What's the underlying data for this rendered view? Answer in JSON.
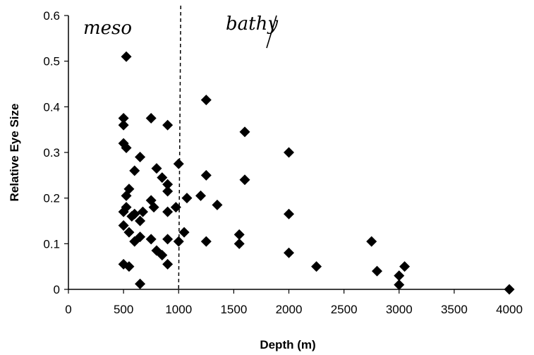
{
  "chart_data": {
    "type": "scatter",
    "xlabel": "Depth (m)",
    "ylabel": "Relative Eye Size",
    "xlim": [
      0,
      4000
    ],
    "ylim": [
      0,
      0.6
    ],
    "x_ticks": [
      "0",
      "500",
      "1000",
      "1500",
      "2000",
      "2500",
      "3000",
      "3500",
      "4000"
    ],
    "y_ticks": [
      "0",
      "0.1",
      "0.2",
      "0.3",
      "0.4",
      "0.5",
      "0.6"
    ],
    "grid": false,
    "marker_color": "#000000",
    "annotations": [
      {
        "text": "meso",
        "handwritten": true
      },
      {
        "text": "bathy",
        "handwritten": true
      }
    ],
    "divider": {
      "x": 1000,
      "style": "dashed"
    },
    "series": [
      {
        "points": [
          [
            525,
            0.51
          ],
          [
            1250,
            0.415
          ],
          [
            500,
            0.375
          ],
          [
            750,
            0.375
          ],
          [
            500,
            0.36
          ],
          [
            900,
            0.36
          ],
          [
            1600,
            0.345
          ],
          [
            500,
            0.32
          ],
          [
            525,
            0.31
          ],
          [
            2000,
            0.3
          ],
          [
            650,
            0.29
          ],
          [
            1000,
            0.275
          ],
          [
            800,
            0.265
          ],
          [
            600,
            0.26
          ],
          [
            1250,
            0.25
          ],
          [
            850,
            0.245
          ],
          [
            1600,
            0.24
          ],
          [
            900,
            0.23
          ],
          [
            550,
            0.22
          ],
          [
            900,
            0.215
          ],
          [
            525,
            0.205
          ],
          [
            1200,
            0.205
          ],
          [
            1075,
            0.2
          ],
          [
            750,
            0.195
          ],
          [
            1350,
            0.185
          ],
          [
            525,
            0.18
          ],
          [
            775,
            0.18
          ],
          [
            975,
            0.18
          ],
          [
            500,
            0.17
          ],
          [
            675,
            0.17
          ],
          [
            900,
            0.17
          ],
          [
            600,
            0.165
          ],
          [
            2000,
            0.165
          ],
          [
            575,
            0.16
          ],
          [
            650,
            0.15
          ],
          [
            500,
            0.14
          ],
          [
            550,
            0.125
          ],
          [
            1050,
            0.125
          ],
          [
            1550,
            0.12
          ],
          [
            650,
            0.115
          ],
          [
            600,
            0.105
          ],
          [
            750,
            0.11
          ],
          [
            900,
            0.11
          ],
          [
            1000,
            0.105
          ],
          [
            1250,
            0.105
          ],
          [
            2750,
            0.105
          ],
          [
            1550,
            0.1
          ],
          [
            800,
            0.085
          ],
          [
            2000,
            0.08
          ],
          [
            850,
            0.075
          ],
          [
            500,
            0.055
          ],
          [
            550,
            0.05
          ],
          [
            900,
            0.055
          ],
          [
            2250,
            0.05
          ],
          [
            3050,
            0.05
          ],
          [
            2800,
            0.04
          ],
          [
            3000,
            0.03
          ],
          [
            650,
            0.012
          ],
          [
            3000,
            0.01
          ],
          [
            4000,
            0.0
          ]
        ]
      }
    ]
  }
}
